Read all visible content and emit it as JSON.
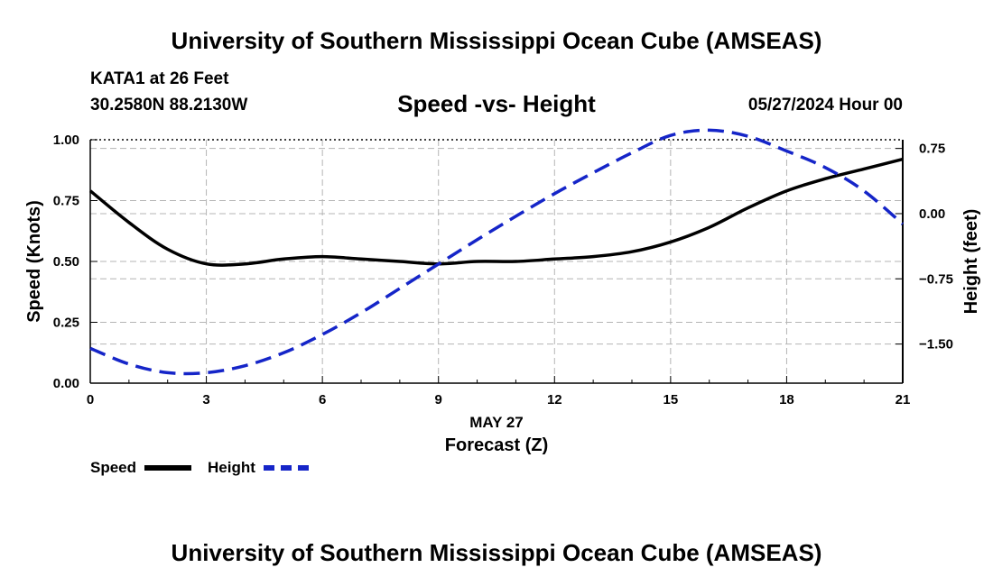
{
  "header": {
    "title": "University of Southern Mississippi Ocean Cube (AMSEAS)",
    "station": "KATA1 at 26 Feet",
    "coords": "30.2580N  88.2130W",
    "subtitle": "Speed -vs- Height",
    "date": "05/27/2024 Hour 00"
  },
  "footer": {
    "title": "University of Southern Mississippi Ocean Cube (AMSEAS)"
  },
  "legend": {
    "speed": "Speed",
    "height": "Height"
  },
  "colors": {
    "speed": "#000000",
    "height": "#1525c8",
    "grid": "#b4b4b4"
  },
  "chart_data": {
    "type": "line",
    "title": "Speed -vs- Height",
    "xlabel": "Forecast (Z)",
    "xlabel_date": "MAY 27",
    "ylabel": "Speed (Knots)",
    "y2label": "Height (feet)",
    "xlim": [
      0,
      21
    ],
    "ylim": [
      0,
      1.0
    ],
    "y2lim": [
      -1.95,
      0.85
    ],
    "xticks": [
      0,
      3,
      6,
      9,
      12,
      15,
      18,
      21
    ],
    "xtick_labels": [
      "0",
      "3",
      "6",
      "9",
      "12",
      "15",
      "18",
      "21"
    ],
    "yticks": [
      0,
      0.25,
      0.5,
      0.75,
      1.0
    ],
    "ytick_labels": [
      "0.00",
      "0.25",
      "0.50",
      "0.75",
      "1.00"
    ],
    "y2ticks": [
      -1.5,
      -0.75,
      0.0,
      0.75
    ],
    "y2tick_labels": [
      "−1.50",
      "−0.75",
      "0.00",
      "0.75"
    ],
    "grid": true,
    "series": [
      {
        "name": "Speed",
        "axis": "left",
        "x": [
          0,
          1,
          2,
          3,
          4,
          5,
          6,
          7,
          8,
          9,
          10,
          11,
          12,
          13,
          14,
          15,
          16,
          17,
          18,
          19,
          20,
          21
        ],
        "values": [
          0.79,
          0.66,
          0.55,
          0.49,
          0.49,
          0.51,
          0.52,
          0.51,
          0.5,
          0.49,
          0.5,
          0.5,
          0.51,
          0.52,
          0.54,
          0.58,
          0.64,
          0.72,
          0.79,
          0.84,
          0.88,
          0.92
        ]
      },
      {
        "name": "Height",
        "axis": "right",
        "x": [
          0,
          1,
          2,
          3,
          4,
          5,
          6,
          7,
          8,
          9,
          10,
          11,
          12,
          13,
          14,
          15,
          16,
          17,
          18,
          19,
          20,
          21
        ],
        "values": [
          -1.55,
          -1.73,
          -1.83,
          -1.83,
          -1.75,
          -1.6,
          -1.39,
          -1.14,
          -0.86,
          -0.58,
          -0.3,
          -0.03,
          0.23,
          0.47,
          0.7,
          0.9,
          0.96,
          0.89,
          0.72,
          0.53,
          0.26,
          -0.12
        ]
      }
    ]
  }
}
